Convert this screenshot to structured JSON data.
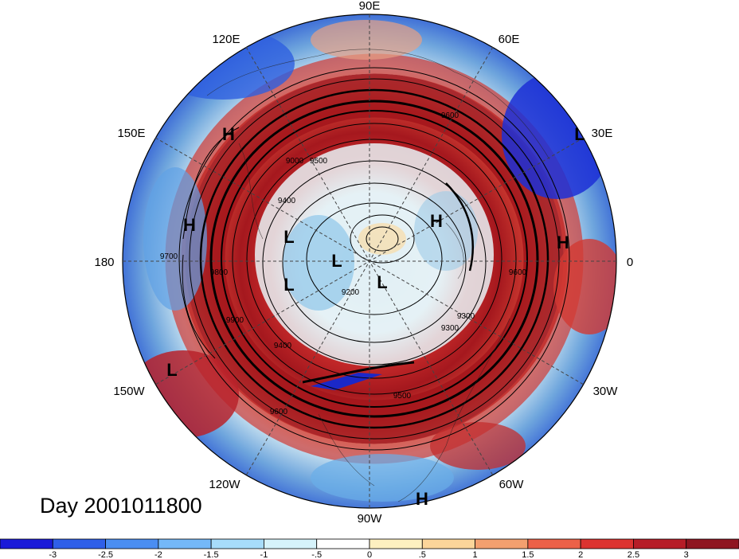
{
  "title": "Day 2001011800",
  "longitude_labels": [
    "90E",
    "60E",
    "30E",
    "0",
    "30W",
    "60W",
    "90W",
    "120W",
    "150W",
    "180",
    "150E",
    "120E"
  ],
  "pressure_systems": [
    {
      "label": "H"
    },
    {
      "label": "H"
    },
    {
      "label": "L"
    },
    {
      "label": "L"
    },
    {
      "label": "L"
    },
    {
      "label": "L"
    },
    {
      "label": "H"
    },
    {
      "label": "H"
    },
    {
      "label": "L"
    },
    {
      "label": "L"
    },
    {
      "label": "H"
    }
  ],
  "contour_labels": [
    "9600",
    "9500",
    "9400",
    "9300",
    "9700",
    "9800",
    "9900",
    "9000",
    "9200",
    "9500",
    "9300",
    "9600",
    "9400",
    "9600"
  ],
  "colorbar": {
    "ticks": [
      "-3",
      "-2.5",
      "-2",
      "-1.5",
      "-1",
      "-.5",
      "0",
      ".5",
      "1",
      "1.5",
      "2",
      "2.5",
      "3"
    ],
    "colors": [
      "#1a1adb",
      "#2f6ff0",
      "#4a9af5",
      "#74bdf8",
      "#a6def9",
      "#d8f5fb",
      "#ffffff",
      "#fdf4c8",
      "#fbd9a0",
      "#f4a072",
      "#ee6049",
      "#d92f2f",
      "#b01c26"
    ]
  }
}
